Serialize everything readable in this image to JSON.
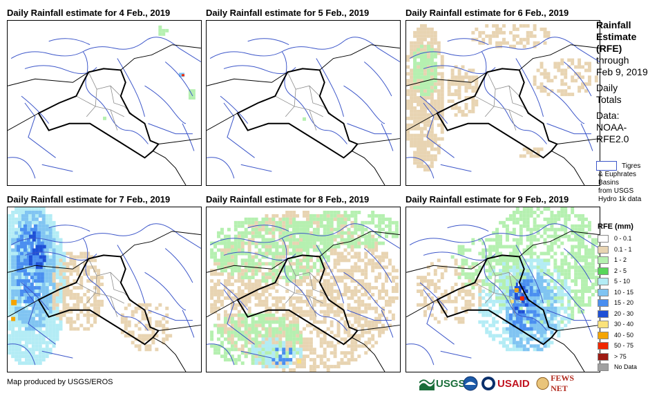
{
  "panels": [
    {
      "id": "feb4",
      "title": "Daily Rainfall estimate for 4 Feb., 2019"
    },
    {
      "id": "feb5",
      "title": "Daily Rainfall estimate for 5 Feb., 2019"
    },
    {
      "id": "feb6",
      "title": "Daily Rainfall estimate for 6 Feb., 2019"
    },
    {
      "id": "feb7",
      "title": "Daily Rainfall estimate for 7 Feb., 2019"
    },
    {
      "id": "feb8",
      "title": "Daily Rainfall estimate for 8 Feb., 2019"
    },
    {
      "id": "feb9",
      "title": "Daily Rainfall estimate for 9 Feb., 2019"
    }
  ],
  "legend": {
    "title_lines": [
      "Rainfall",
      "Estimate",
      "(RFE)"
    ],
    "through_lines": [
      "through",
      "Feb 9, 2019"
    ],
    "daily_lines": [
      "Daily",
      "Totals"
    ],
    "data_lines": [
      "Data:",
      "NOAA-",
      "RFE2.0"
    ],
    "basin_lines": [
      "Tigres",
      "& Euphrates",
      "Basins",
      "from USGS",
      "Hydro 1k data"
    ],
    "rfe_title": "RFE (mm)",
    "classes": [
      {
        "label": "0 - 0.1",
        "color": "#ffffff"
      },
      {
        "label": "0.1 - 1",
        "color": "#e8d4b2"
      },
      {
        "label": "1 - 2",
        "color": "#b5f0b0"
      },
      {
        "label": "2 - 5",
        "color": "#58d65a"
      },
      {
        "label": "5 - 10",
        "color": "#b3ecf5"
      },
      {
        "label": "10 - 15",
        "color": "#80c4f2"
      },
      {
        "label": "15 - 20",
        "color": "#4a8ef0"
      },
      {
        "label": "20 - 30",
        "color": "#1e50d6"
      },
      {
        "label": "30 - 40",
        "color": "#fbe27a"
      },
      {
        "label": "40 - 50",
        "color": "#f5a400"
      },
      {
        "label": "50 - 75",
        "color": "#f02800"
      },
      {
        "label": "> 75",
        "color": "#9e1a12"
      },
      {
        "label": "No Data",
        "color": "#a0a0a0"
      }
    ]
  },
  "colors": {
    "border": "#000000",
    "rivers": "#3b55c9",
    "provinces": "#8a8a8a"
  },
  "credit": "Map produced by USGS/EROS",
  "logos": {
    "usgs": "USGS",
    "usaid": "USAID",
    "fewsnet": "FEWS NET"
  }
}
